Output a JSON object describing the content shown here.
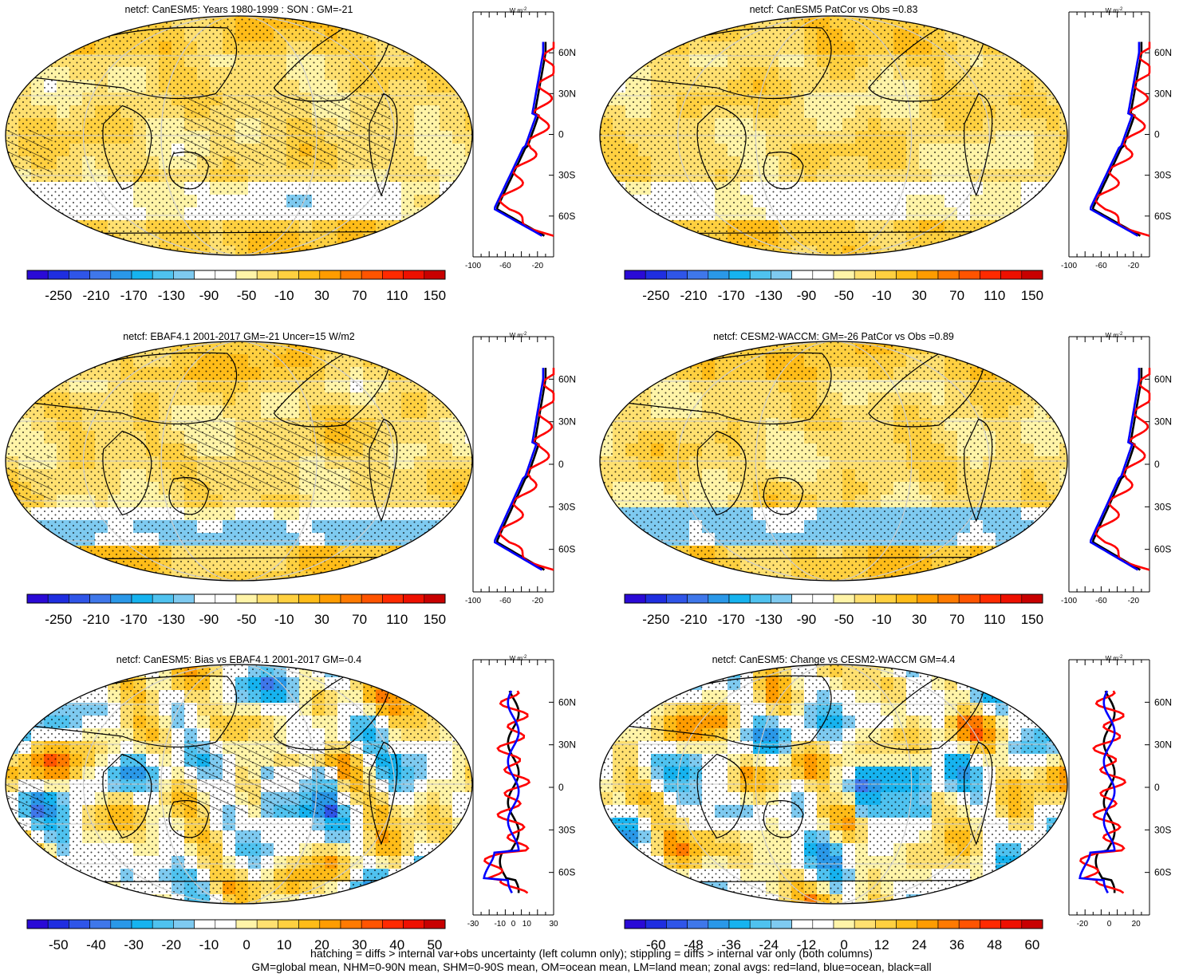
{
  "chart_data": [
    {
      "type": "map",
      "title": "netcf: CanESM5: Years 1980-1999 : SON : GM=-21",
      "colorbar": {
        "labels": [
          "-250",
          "-210",
          "-170",
          "-130",
          "-90",
          "-50",
          "-10",
          "30",
          "70",
          "110",
          "150"
        ],
        "range": [
          -270,
          170
        ]
      },
      "zonal": {
        "unit_label": "W m-2",
        "x_ticks": [
          "-100",
          "-60",
          "-20"
        ],
        "xlim": [
          -100,
          0
        ],
        "lat_labels": [
          "60N",
          "30N",
          "0",
          "30S",
          "60S"
        ],
        "series": [
          {
            "name": "all",
            "color": "#000000"
          },
          {
            "name": "land",
            "color": "#ff0000"
          },
          {
            "name": "ocean",
            "color": "#0000ff"
          }
        ]
      }
    },
    {
      "type": "map",
      "title": "netcf: CanESM5 PatCor vs Obs =0.83",
      "colorbar": {
        "labels": [
          "-250",
          "-210",
          "-170",
          "-130",
          "-90",
          "-50",
          "-10",
          "30",
          "70",
          "110",
          "150"
        ],
        "range": [
          -270,
          170
        ]
      },
      "zonal": {
        "unit_label": "W m-2",
        "x_ticks": [
          "-100",
          "-60",
          "-20"
        ],
        "xlim": [
          -100,
          0
        ],
        "lat_labels": [
          "60N",
          "30N",
          "0",
          "30S",
          "60S"
        ],
        "series": [
          {
            "name": "all",
            "color": "#000000"
          },
          {
            "name": "land",
            "color": "#ff0000"
          },
          {
            "name": "ocean",
            "color": "#0000ff"
          }
        ]
      }
    },
    {
      "type": "map",
      "title": "netcf: EBAF4.1 2001-2017 GM=-21 Uncer=15 W/m2",
      "colorbar": {
        "labels": [
          "-250",
          "-210",
          "-170",
          "-130",
          "-90",
          "-50",
          "-10",
          "30",
          "70",
          "110",
          "150"
        ],
        "range": [
          -270,
          170
        ]
      },
      "zonal": {
        "unit_label": "W m-2",
        "x_ticks": [
          "-100",
          "-60",
          "-20"
        ],
        "xlim": [
          -100,
          0
        ],
        "lat_labels": [
          "60N",
          "30N",
          "0",
          "30S",
          "60S"
        ],
        "series": [
          {
            "name": "all",
            "color": "#000000"
          },
          {
            "name": "land",
            "color": "#ff0000"
          },
          {
            "name": "ocean",
            "color": "#0000ff"
          }
        ]
      }
    },
    {
      "type": "map",
      "title": "netcf: CESM2-WACCM: GM=-26 PatCor vs Obs =0.89",
      "colorbar": {
        "labels": [
          "-250",
          "-210",
          "-170",
          "-130",
          "-90",
          "-50",
          "-10",
          "30",
          "70",
          "110",
          "150"
        ],
        "range": [
          -270,
          170
        ]
      },
      "zonal": {
        "unit_label": "W m-2",
        "x_ticks": [
          "-100",
          "-60",
          "-20"
        ],
        "xlim": [
          -100,
          0
        ],
        "lat_labels": [
          "60N",
          "30N",
          "0",
          "30S",
          "60S"
        ],
        "series": [
          {
            "name": "all",
            "color": "#000000"
          },
          {
            "name": "land",
            "color": "#ff0000"
          },
          {
            "name": "ocean",
            "color": "#0000ff"
          }
        ]
      }
    },
    {
      "type": "map",
      "title": "netcf: CanESM5: Bias vs EBAF4.1 2001-2017  GM=-0.4",
      "colorbar": {
        "labels": [
          "-50",
          "-40",
          "-30",
          "-20",
          "-10",
          "0",
          "10",
          "20",
          "30",
          "40",
          "50"
        ],
        "range": [
          -55,
          55
        ]
      },
      "zonal": {
        "unit_label": "W m-2",
        "x_ticks": [
          "-30",
          "-10",
          "0",
          "10",
          "30"
        ],
        "xlim": [
          -30,
          30
        ],
        "lat_labels": [
          "60N",
          "30N",
          "0",
          "30S",
          "60S"
        ],
        "series": [
          {
            "name": "all",
            "color": "#000000"
          },
          {
            "name": "land",
            "color": "#ff0000"
          },
          {
            "name": "ocean",
            "color": "#0000ff"
          }
        ]
      }
    },
    {
      "type": "map",
      "title": "netcf: CanESM5: Change vs CESM2-WACCM GM=4.4",
      "colorbar": {
        "labels": [
          "-60",
          "-48",
          "-36",
          "-24",
          "-12",
          "0",
          "12",
          "24",
          "36",
          "48",
          "60"
        ],
        "range": [
          -66,
          66
        ]
      },
      "zonal": {
        "unit_label": "W m-2",
        "x_ticks": [
          "-20",
          "0",
          "20"
        ],
        "xlim": [
          -30,
          30
        ],
        "lat_labels": [
          "60N",
          "30N",
          "0",
          "30S",
          "60S"
        ],
        "series": [
          {
            "name": "all",
            "color": "#000000"
          },
          {
            "name": "land",
            "color": "#ff0000"
          },
          {
            "name": "ocean",
            "color": "#0000ff"
          }
        ]
      }
    }
  ],
  "footer": {
    "line1": "hatching = diffs > internal var+obs uncertainty (left column only); stippling = diffs > internal var only (both columns)",
    "line2": "GM=global mean, NHM=0-90N mean, SHM=0-90S mean, OM=ocean mean, LM=land mean; zonal avgs: red=land, blue=ocean, black=all"
  },
  "palette": [
    "#2a0ad6",
    "#1f2ee0",
    "#2f55e8",
    "#3f77ea",
    "#2a98e8",
    "#16b3ef",
    "#4fc2ef",
    "#7ecaf0",
    "#ffffff",
    "#ffffff",
    "#fff4a8",
    "#ffe070",
    "#ffd040",
    "#ffbc18",
    "#ff9c00",
    "#ff7a00",
    "#ff5400",
    "#ff2a00",
    "#ee1000",
    "#c80000"
  ]
}
